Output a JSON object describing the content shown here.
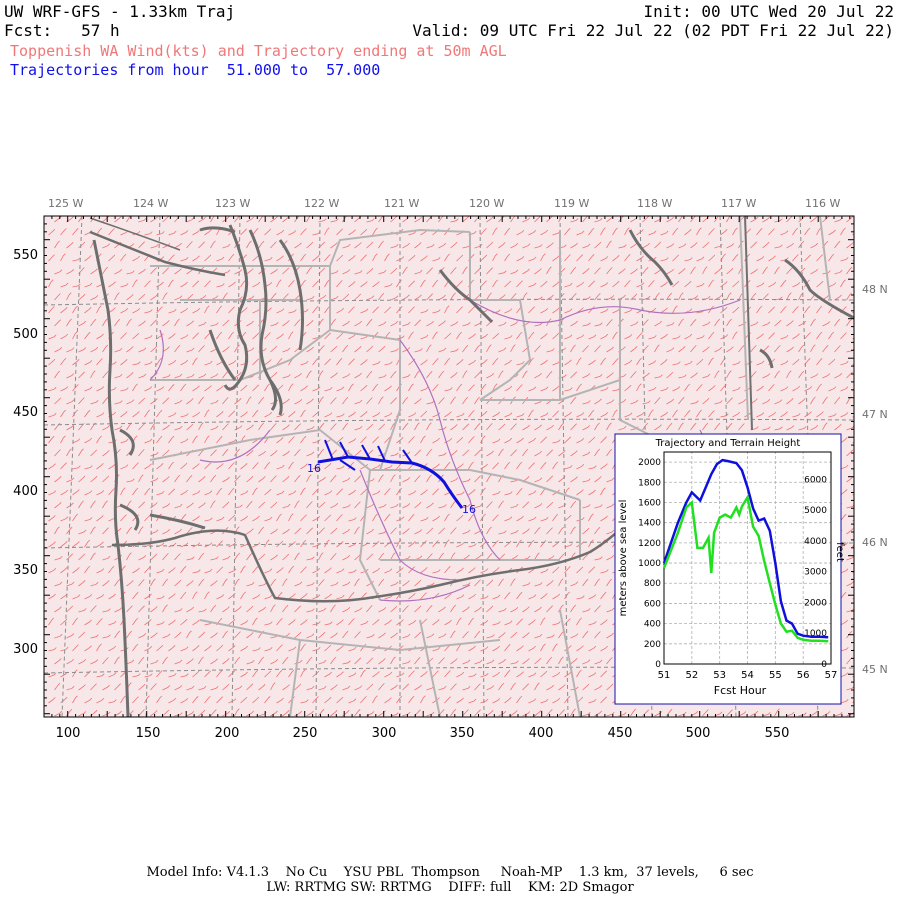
{
  "header": {
    "title": "UW WRF-GFS - 1.33km Traj",
    "init": "Init: 00 UTC Wed 20 Jul 22",
    "fcst_label": "Fcst:",
    "fcst_value": "57 h",
    "valid": "Valid: 09 UTC Fri 22 Jul 22 (02 PDT Fri 22 Jul 22)",
    "subtitle": "Toppenish WA Wind(kts) and Trajectory ending at 50m AGL",
    "trajectory_label": "Trajectories from hour",
    "trajectory_from": "51.000",
    "trajectory_to_word": "to",
    "trajectory_to": "57.000"
  },
  "map": {
    "lon_labels": [
      "125 W",
      "124 W",
      "123 W",
      "122 W",
      "121 W",
      "120 W",
      "119 W",
      "118 W",
      "117 W",
      "116 W"
    ],
    "lat_labels": [
      "48 N",
      "47 N",
      "46 N",
      "45 N"
    ],
    "x_ticks": [
      "100",
      "150",
      "200",
      "250",
      "300",
      "350",
      "400",
      "450",
      "500",
      "550"
    ],
    "y_ticks": [
      "550",
      "500",
      "450",
      "400",
      "350",
      "300"
    ],
    "trajectory_start_label": "16",
    "trajectory_end_label": "16",
    "colors": {
      "wind_barbs": "#f07070",
      "coast": "#707070",
      "borders": "#b0b0b0",
      "rivers": "#b070c0",
      "trajectory": "#1010dd",
      "grid": "#909090"
    }
  },
  "inset": {
    "title": "Trajectory and Terrain Height",
    "y_left_label": "meters above sea level",
    "y_right_label": "feet",
    "x_label": "Fcst Hour",
    "x_ticks": [
      "51",
      "52",
      "53",
      "54",
      "55",
      "56",
      "57"
    ],
    "y_left_ticks": [
      "0",
      "200",
      "400",
      "600",
      "800",
      "1000",
      "1200",
      "1400",
      "1600",
      "1800",
      "2000"
    ],
    "y_right_ticks": [
      "0",
      "1000",
      "2000",
      "3000",
      "4000",
      "5000",
      "6000"
    ]
  },
  "chart_data": {
    "type": "line",
    "title": "Trajectory and Terrain Height",
    "xlabel": "Fcst Hour",
    "ylabel": "meters above sea level",
    "y2label": "feet",
    "xlim": [
      51,
      57
    ],
    "ylim": [
      0,
      2100
    ],
    "grid": true,
    "series": [
      {
        "color": "#1010dd",
        "x": [
          51.0,
          51.5,
          51.8,
          52.0,
          52.3,
          52.5,
          52.7,
          52.9,
          53.1,
          53.3,
          53.6,
          53.8,
          54.0,
          54.2,
          54.4,
          54.6,
          54.8,
          55.0,
          55.2,
          55.4,
          55.6,
          55.8,
          56.0,
          56.3,
          56.6,
          56.9
        ],
        "y": [
          1000,
          1400,
          1600,
          1700,
          1620,
          1750,
          1880,
          1980,
          2020,
          2010,
          1990,
          1920,
          1750,
          1540,
          1420,
          1440,
          1320,
          1000,
          620,
          430,
          400,
          300,
          280,
          270,
          270,
          265
        ]
      },
      {
        "color": "#20e020",
        "x": [
          51.0,
          51.5,
          51.8,
          52.0,
          52.2,
          52.4,
          52.6,
          52.7,
          52.8,
          53.0,
          53.2,
          53.4,
          53.5,
          53.6,
          53.7,
          53.8,
          54.0,
          54.2,
          54.4,
          54.6,
          54.8,
          55.0,
          55.2,
          55.4,
          55.6,
          55.8,
          56.0,
          56.3,
          56.6,
          56.9
        ],
        "y": [
          950,
          1300,
          1550,
          1600,
          1150,
          1150,
          1250,
          900,
          1300,
          1450,
          1480,
          1450,
          1500,
          1550,
          1480,
          1560,
          1650,
          1360,
          1270,
          1020,
          800,
          590,
          400,
          320,
          330,
          260,
          240,
          230,
          230,
          225
        ]
      }
    ]
  }
}
